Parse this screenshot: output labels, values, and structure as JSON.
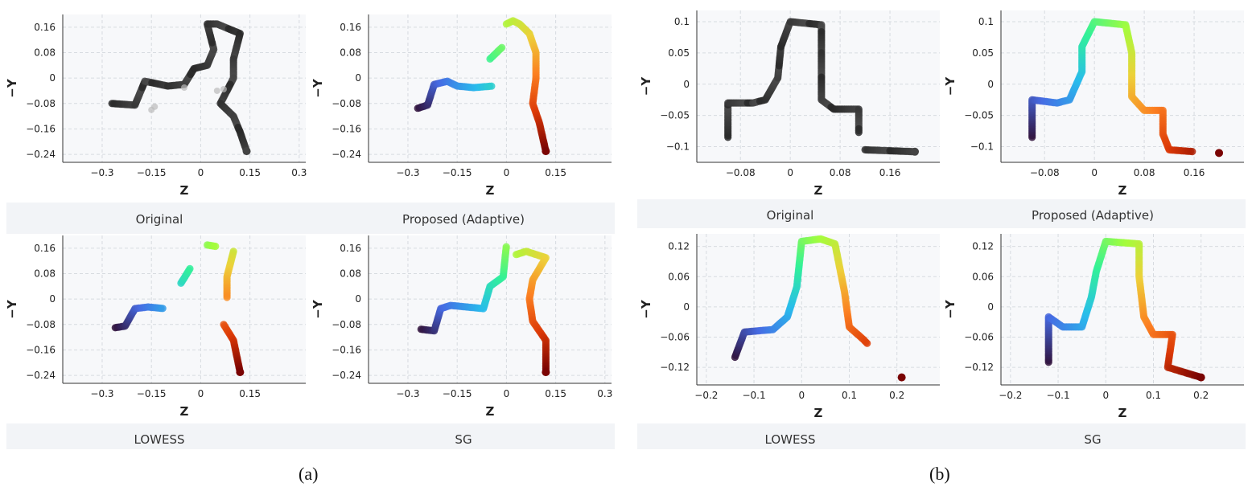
{
  "figure_a": {
    "label": "(a)",
    "row1_captions": [
      "Original",
      "Proposed (Adaptive)"
    ],
    "row2_captions": [
      "LOWESS",
      "SG"
    ]
  },
  "figure_b": {
    "label": "(b)",
    "row1_captions": [
      "Original",
      "Proposed (Adaptive)"
    ],
    "row2_captions": [
      "LOWESS",
      "SG"
    ]
  },
  "colors": {
    "panel_bg": "#f7f8fa",
    "grid": "#d7dbe0",
    "caption_band": "#f2f4f7",
    "original_points": "#3a3a3a"
  },
  "chart_data": [
    {
      "id": "a-original",
      "type": "scatter",
      "title": "Original",
      "xlabel": "Z",
      "ylabel": "−Y",
      "xlim": [
        -0.42,
        0.32
      ],
      "ylim": [
        -0.265,
        0.2
      ],
      "xticks": [
        -0.3,
        -0.15,
        0,
        0.15,
        0.3
      ],
      "xtick_labels": [
        "−0.3",
        "−0.15",
        "0",
        "0.15",
        "0.3"
      ],
      "yticks": [
        0.16,
        0.08,
        0,
        -0.08,
        -0.16,
        -0.24
      ],
      "ytick_labels": [
        "0.16",
        "0.08",
        "0",
        "−0.08",
        "−0.16",
        "−0.24"
      ],
      "colormap": "gray",
      "ghosts": true,
      "path": [
        [
          -0.27,
          -0.08
        ],
        [
          -0.2,
          -0.085
        ],
        [
          -0.17,
          -0.01
        ],
        [
          -0.1,
          -0.025
        ],
        [
          -0.05,
          -0.02
        ],
        [
          -0.02,
          0.03
        ],
        [
          0.02,
          0.04
        ],
        [
          0.04,
          0.09
        ],
        [
          0.02,
          0.17
        ],
        [
          0.05,
          0.17
        ],
        [
          0.12,
          0.14
        ],
        [
          0.1,
          0.06
        ],
        [
          0.1,
          0.0
        ],
        [
          0.06,
          -0.08
        ],
        [
          0.1,
          -0.12
        ],
        [
          0.12,
          -0.17
        ],
        [
          0.14,
          -0.23
        ]
      ]
    },
    {
      "id": "a-proposed",
      "type": "scatter",
      "title": "Proposed (Adaptive)",
      "xlabel": "Z",
      "ylabel": "−Y",
      "xlim": [
        -0.42,
        0.32
      ],
      "ylim": [
        -0.265,
        0.2
      ],
      "xticks": [
        -0.3,
        -0.15,
        0,
        0.15
      ],
      "xtick_labels": [
        "−0.3",
        "−0.15",
        "0",
        "0.15"
      ],
      "yticks": [
        0.16,
        0.08,
        0,
        -0.08,
        -0.16,
        -0.24
      ],
      "ytick_labels": [
        "0.16",
        "0.08",
        "0",
        "−0.08",
        "−0.16",
        "−0.24"
      ],
      "colormap": "turbo",
      "path": [
        [
          -0.27,
          -0.095
        ],
        [
          -0.24,
          -0.085
        ],
        [
          -0.22,
          -0.02
        ],
        [
          -0.18,
          -0.01
        ],
        [
          -0.15,
          -0.025
        ],
        [
          -0.1,
          -0.03
        ],
        [
          -0.04,
          -0.025
        ],
        [
          -0.05,
          0.06
        ],
        [
          -0.01,
          0.1
        ],
        [
          0.0,
          0.17
        ],
        [
          0.02,
          0.18
        ],
        [
          0.04,
          0.17
        ],
        [
          0.07,
          0.14
        ],
        [
          0.09,
          0.08
        ],
        [
          0.09,
          0.0
        ],
        [
          0.08,
          -0.08
        ],
        [
          0.1,
          -0.14
        ],
        [
          0.12,
          -0.23
        ]
      ],
      "gaps": [
        6,
        8
      ]
    },
    {
      "id": "a-lowess",
      "type": "scatter",
      "title": "LOWESS",
      "xlabel": "Z",
      "ylabel": "−Y",
      "xlim": [
        -0.42,
        0.32
      ],
      "ylim": [
        -0.265,
        0.2
      ],
      "xticks": [
        -0.3,
        -0.15,
        0,
        0.15
      ],
      "xtick_labels": [
        "−0.3",
        "−0.15",
        "0",
        "0.15"
      ],
      "yticks": [
        0.16,
        0.08,
        0,
        -0.08,
        -0.16,
        -0.24
      ],
      "ytick_labels": [
        "0.16",
        "0.08",
        "0",
        "−0.08",
        "−0.16",
        "−0.24"
      ],
      "colormap": "turbo",
      "path": [
        [
          -0.26,
          -0.09
        ],
        [
          -0.23,
          -0.085
        ],
        [
          -0.2,
          -0.03
        ],
        [
          -0.16,
          -0.025
        ],
        [
          -0.11,
          -0.03
        ],
        [
          -0.06,
          0.05
        ],
        [
          -0.03,
          0.1
        ],
        [
          0.02,
          0.17
        ],
        [
          0.05,
          0.165
        ],
        [
          0.1,
          0.15
        ],
        [
          0.08,
          0.07
        ],
        [
          0.08,
          0.0
        ],
        [
          0.07,
          -0.08
        ],
        [
          0.1,
          -0.13
        ],
        [
          0.12,
          -0.23
        ]
      ],
      "gaps": [
        4,
        6,
        8,
        11
      ]
    },
    {
      "id": "a-sg",
      "type": "scatter",
      "title": "SG",
      "xlabel": "Z",
      "ylabel": "−Y",
      "xlim": [
        -0.42,
        0.32
      ],
      "ylim": [
        -0.265,
        0.2
      ],
      "xticks": [
        -0.3,
        -0.15,
        0,
        0.15,
        0.3
      ],
      "xtick_labels": [
        "−0.3",
        "−0.15",
        "0",
        "0.15",
        "0.3"
      ],
      "yticks": [
        0.16,
        0.08,
        0,
        -0.08,
        -0.16,
        -0.24
      ],
      "ytick_labels": [
        "0.16",
        "0.08",
        "0",
        "−0.08",
        "−0.16",
        "−0.24"
      ],
      "colormap": "turbo",
      "path": [
        [
          -0.26,
          -0.095
        ],
        [
          -0.22,
          -0.1
        ],
        [
          -0.2,
          -0.03
        ],
        [
          -0.17,
          -0.02
        ],
        [
          -0.12,
          -0.025
        ],
        [
          -0.07,
          -0.03
        ],
        [
          -0.05,
          0.04
        ],
        [
          -0.01,
          0.07
        ],
        [
          0.0,
          0.17
        ],
        [
          0.03,
          0.14
        ],
        [
          0.06,
          0.15
        ],
        [
          0.12,
          0.13
        ],
        [
          0.08,
          0.06
        ],
        [
          0.07,
          0.0
        ],
        [
          0.08,
          -0.07
        ],
        [
          0.12,
          -0.13
        ],
        [
          0.12,
          -0.23
        ]
      ],
      "gaps": [
        8
      ]
    },
    {
      "id": "b-original",
      "type": "scatter",
      "title": "Original",
      "xlabel": "Z",
      "ylabel": "−Y",
      "xlim": [
        -0.15,
        0.24
      ],
      "ylim": [
        -0.125,
        0.118
      ],
      "xticks": [
        -0.08,
        0,
        0.08,
        0.16
      ],
      "xtick_labels": [
        "−0.08",
        "0",
        "0.08",
        "0.16"
      ],
      "yticks": [
        0.1,
        0.05,
        0,
        -0.05,
        -0.1
      ],
      "ytick_labels": [
        "0.1",
        "0.05",
        "0",
        "−0.05",
        "−0.1"
      ],
      "colormap": "gray",
      "path": [
        [
          -0.1,
          -0.085
        ],
        [
          -0.1,
          -0.03
        ],
        [
          -0.06,
          -0.03
        ],
        [
          -0.04,
          -0.025
        ],
        [
          -0.02,
          0.01
        ],
        [
          -0.015,
          0.06
        ],
        [
          0.0,
          0.1
        ],
        [
          0.05,
          0.095
        ],
        [
          0.05,
          0.05
        ],
        [
          0.05,
          -0.025
        ],
        [
          0.07,
          -0.04
        ],
        [
          0.11,
          -0.04
        ],
        [
          0.11,
          -0.08
        ],
        [
          0.12,
          -0.105
        ],
        [
          0.2,
          -0.108
        ]
      ],
      "gaps": [
        12
      ]
    },
    {
      "id": "b-proposed",
      "type": "scatter",
      "title": "Proposed (Adaptive)",
      "xlabel": "Z",
      "ylabel": "−Y",
      "xlim": [
        -0.15,
        0.24
      ],
      "ylim": [
        -0.125,
        0.118
      ],
      "xticks": [
        -0.08,
        0,
        0.08,
        0.16
      ],
      "xtick_labels": [
        "−0.08",
        "0",
        "0.08",
        "0.16"
      ],
      "yticks": [
        0.1,
        0.05,
        0,
        -0.05,
        -0.1
      ],
      "ytick_labels": [
        "0.1",
        "0.05",
        "0",
        "−0.05",
        "−0.1"
      ],
      "colormap": "turbo",
      "path": [
        [
          -0.1,
          -0.085
        ],
        [
          -0.1,
          -0.025
        ],
        [
          -0.06,
          -0.03
        ],
        [
          -0.04,
          -0.025
        ],
        [
          -0.02,
          0.02
        ],
        [
          -0.02,
          0.06
        ],
        [
          0.0,
          0.1
        ],
        [
          0.05,
          0.095
        ],
        [
          0.06,
          0.05
        ],
        [
          0.06,
          -0.02
        ],
        [
          0.08,
          -0.042
        ],
        [
          0.11,
          -0.042
        ],
        [
          0.11,
          -0.08
        ],
        [
          0.12,
          -0.105
        ],
        [
          0.16,
          -0.108
        ],
        [
          0.2,
          -0.11
        ]
      ],
      "gaps": [
        14
      ]
    },
    {
      "id": "b-lowess",
      "type": "scatter",
      "title": "LOWESS",
      "xlabel": "Z",
      "ylabel": "−Y",
      "xlim": [
        -0.22,
        0.29
      ],
      "ylim": [
        -0.155,
        0.145
      ],
      "xticks": [
        -0.2,
        -0.1,
        0,
        0.1,
        0.2
      ],
      "xtick_labels": [
        "−0.2",
        "−0.1",
        "0",
        "0.1",
        "0.2"
      ],
      "yticks": [
        0.12,
        0.06,
        0,
        -0.06,
        -0.12
      ],
      "ytick_labels": [
        "0.12",
        "0.06",
        "0",
        "−0.06",
        "−0.12"
      ],
      "colormap": "turbo",
      "path": [
        [
          -0.14,
          -0.1
        ],
        [
          -0.12,
          -0.05
        ],
        [
          -0.06,
          -0.045
        ],
        [
          -0.03,
          -0.02
        ],
        [
          -0.01,
          0.04
        ],
        [
          0.0,
          0.13
        ],
        [
          0.04,
          0.135
        ],
        [
          0.07,
          0.125
        ],
        [
          0.09,
          0.03
        ],
        [
          0.1,
          -0.04
        ],
        [
          0.13,
          -0.065
        ],
        [
          0.14,
          -0.075
        ],
        [
          0.21,
          -0.14
        ]
      ],
      "gaps": [
        11
      ]
    },
    {
      "id": "b-sg",
      "type": "scatter",
      "title": "SG",
      "xlabel": "Z",
      "ylabel": "−Y",
      "xlim": [
        -0.22,
        0.29
      ],
      "ylim": [
        -0.155,
        0.145
      ],
      "xticks": [
        -0.2,
        -0.1,
        0,
        0.1,
        0.2
      ],
      "xtick_labels": [
        "−0.2",
        "−0.1",
        "0",
        "0.1",
        "0.2"
      ],
      "yticks": [
        0.12,
        0.06,
        0,
        -0.06,
        -0.12
      ],
      "ytick_labels": [
        "0.12",
        "0.06",
        "0",
        "−0.06",
        "−0.12"
      ],
      "colormap": "turbo",
      "path": [
        [
          -0.12,
          -0.11
        ],
        [
          -0.12,
          -0.02
        ],
        [
          -0.09,
          -0.04
        ],
        [
          -0.05,
          -0.04
        ],
        [
          -0.03,
          0.02
        ],
        [
          -0.02,
          0.07
        ],
        [
          0.0,
          0.13
        ],
        [
          0.07,
          0.125
        ],
        [
          0.07,
          0.06
        ],
        [
          0.08,
          -0.02
        ],
        [
          0.1,
          -0.055
        ],
        [
          0.14,
          -0.055
        ],
        [
          0.13,
          -0.12
        ],
        [
          0.2,
          -0.14
        ]
      ],
      "gaps": [
        13
      ]
    }
  ]
}
